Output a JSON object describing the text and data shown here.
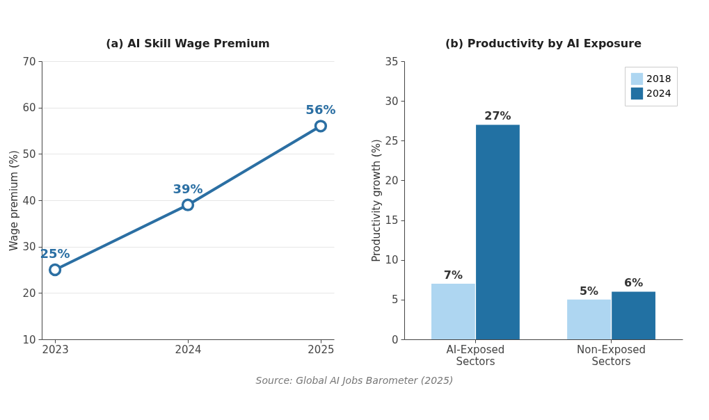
{
  "chart_data": [
    {
      "type": "line",
      "title": "(a) AI Skill Wage Premium",
      "ylabel": "Wage premium (%)",
      "categories": [
        "2023",
        "2024",
        "2025"
      ],
      "series": [
        {
          "color": "#2b6fa3",
          "values": [
            25,
            39,
            56
          ],
          "value_labels": [
            "25%",
            "39%",
            "56%"
          ]
        }
      ],
      "ylim": [
        10,
        70
      ],
      "yticks": [
        10,
        20,
        30,
        40,
        50,
        60,
        70
      ],
      "grid": "y",
      "marker": "circle",
      "line_style": "solid"
    },
    {
      "type": "bar",
      "title": "(b) Productivity by AI Exposure",
      "ylabel": "Productivity growth (%)",
      "categories": [
        "AI-Exposed Sectors",
        "Non-Exposed Sectors"
      ],
      "series": [
        {
          "name": "2018",
          "color": "#aed6f1",
          "values": [
            7,
            5
          ],
          "value_labels": [
            "7%",
            "5%"
          ]
        },
        {
          "name": "2024",
          "color": "#2271a3",
          "values": [
            27,
            6
          ],
          "value_labels": [
            "27%",
            "6%"
          ]
        }
      ],
      "ylim": [
        0,
        35
      ],
      "yticks": [
        0,
        5,
        10,
        15,
        20,
        25,
        30,
        35
      ],
      "legend": "top right",
      "annotations": [
        "Source: Global AI Jobs Barometer (2025)"
      ]
    }
  ]
}
